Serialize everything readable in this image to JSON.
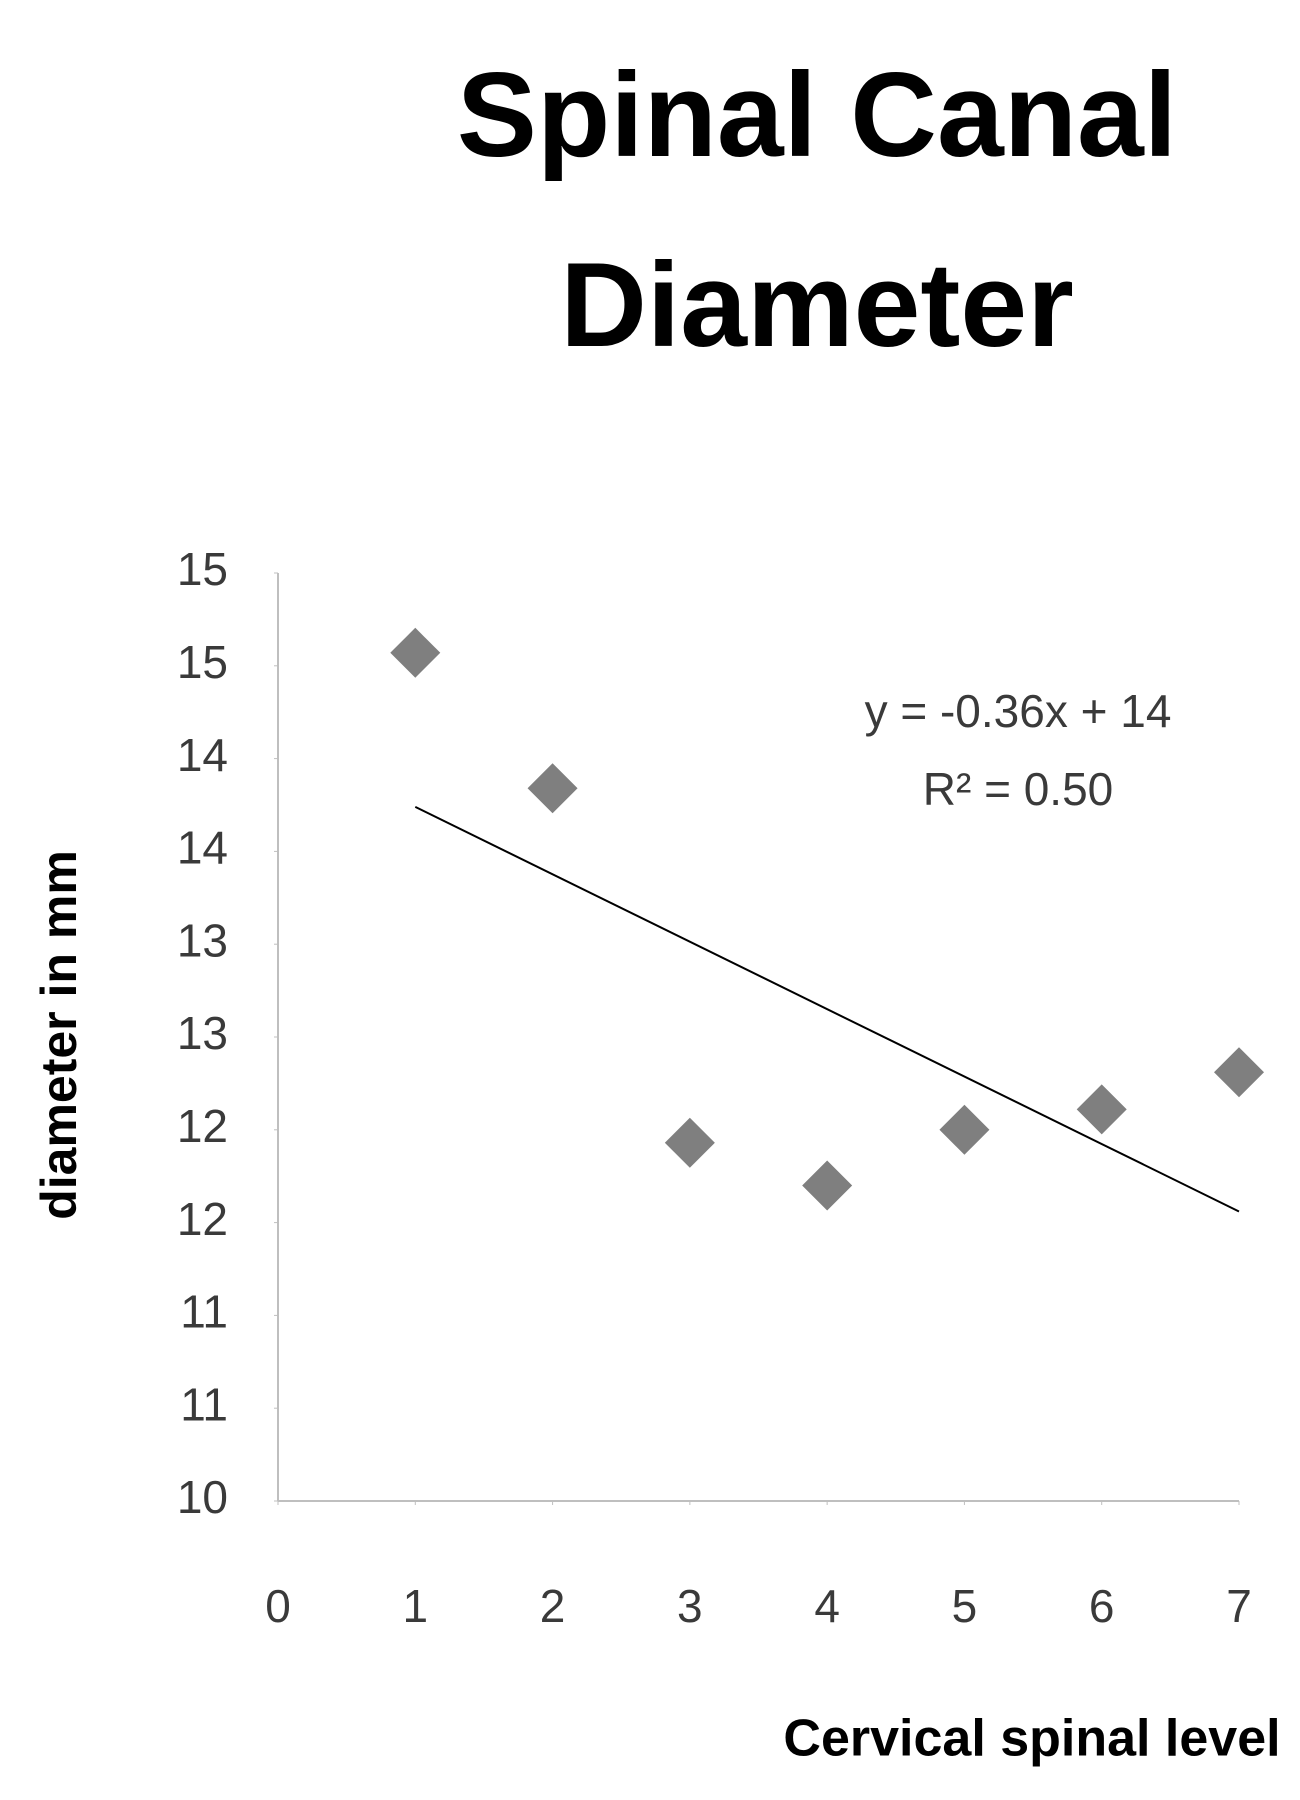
{
  "chart_data": {
    "type": "scatter",
    "title": "Spinal Canal Diameter",
    "x_label": "Cervical spinal level",
    "y_label": "diameter in mm",
    "series": [
      {
        "x": [
          1,
          2,
          3,
          4,
          5,
          6,
          7
        ],
        "values": [
          14.57,
          13.84,
          11.93,
          11.7,
          12.0,
          12.11,
          12.31
        ],
        "color": "#7f7f7f",
        "marker": "diamond"
      }
    ],
    "trendline": {
      "x": [
        1,
        7
      ],
      "values": [
        13.74,
        11.56
      ],
      "color": "#000000"
    },
    "annotations": [
      "y = -0.36x + 14",
      "R² = 0.50"
    ],
    "xlim": [
      0,
      7
    ],
    "xticks": [
      0,
      1,
      2,
      3,
      4,
      5,
      6,
      7
    ],
    "ylim": [
      10,
      15
    ],
    "yticks": [
      10,
      {
        "value": 10.5,
        "label": "11"
      },
      11,
      {
        "value": 11.5,
        "label": "12"
      },
      12,
      {
        "value": 12.5,
        "label": "13"
      },
      13,
      {
        "value": 13.5,
        "label": "14"
      },
      14,
      {
        "value": 14.5,
        "label": "15"
      },
      15
    ],
    "grid": false
  }
}
